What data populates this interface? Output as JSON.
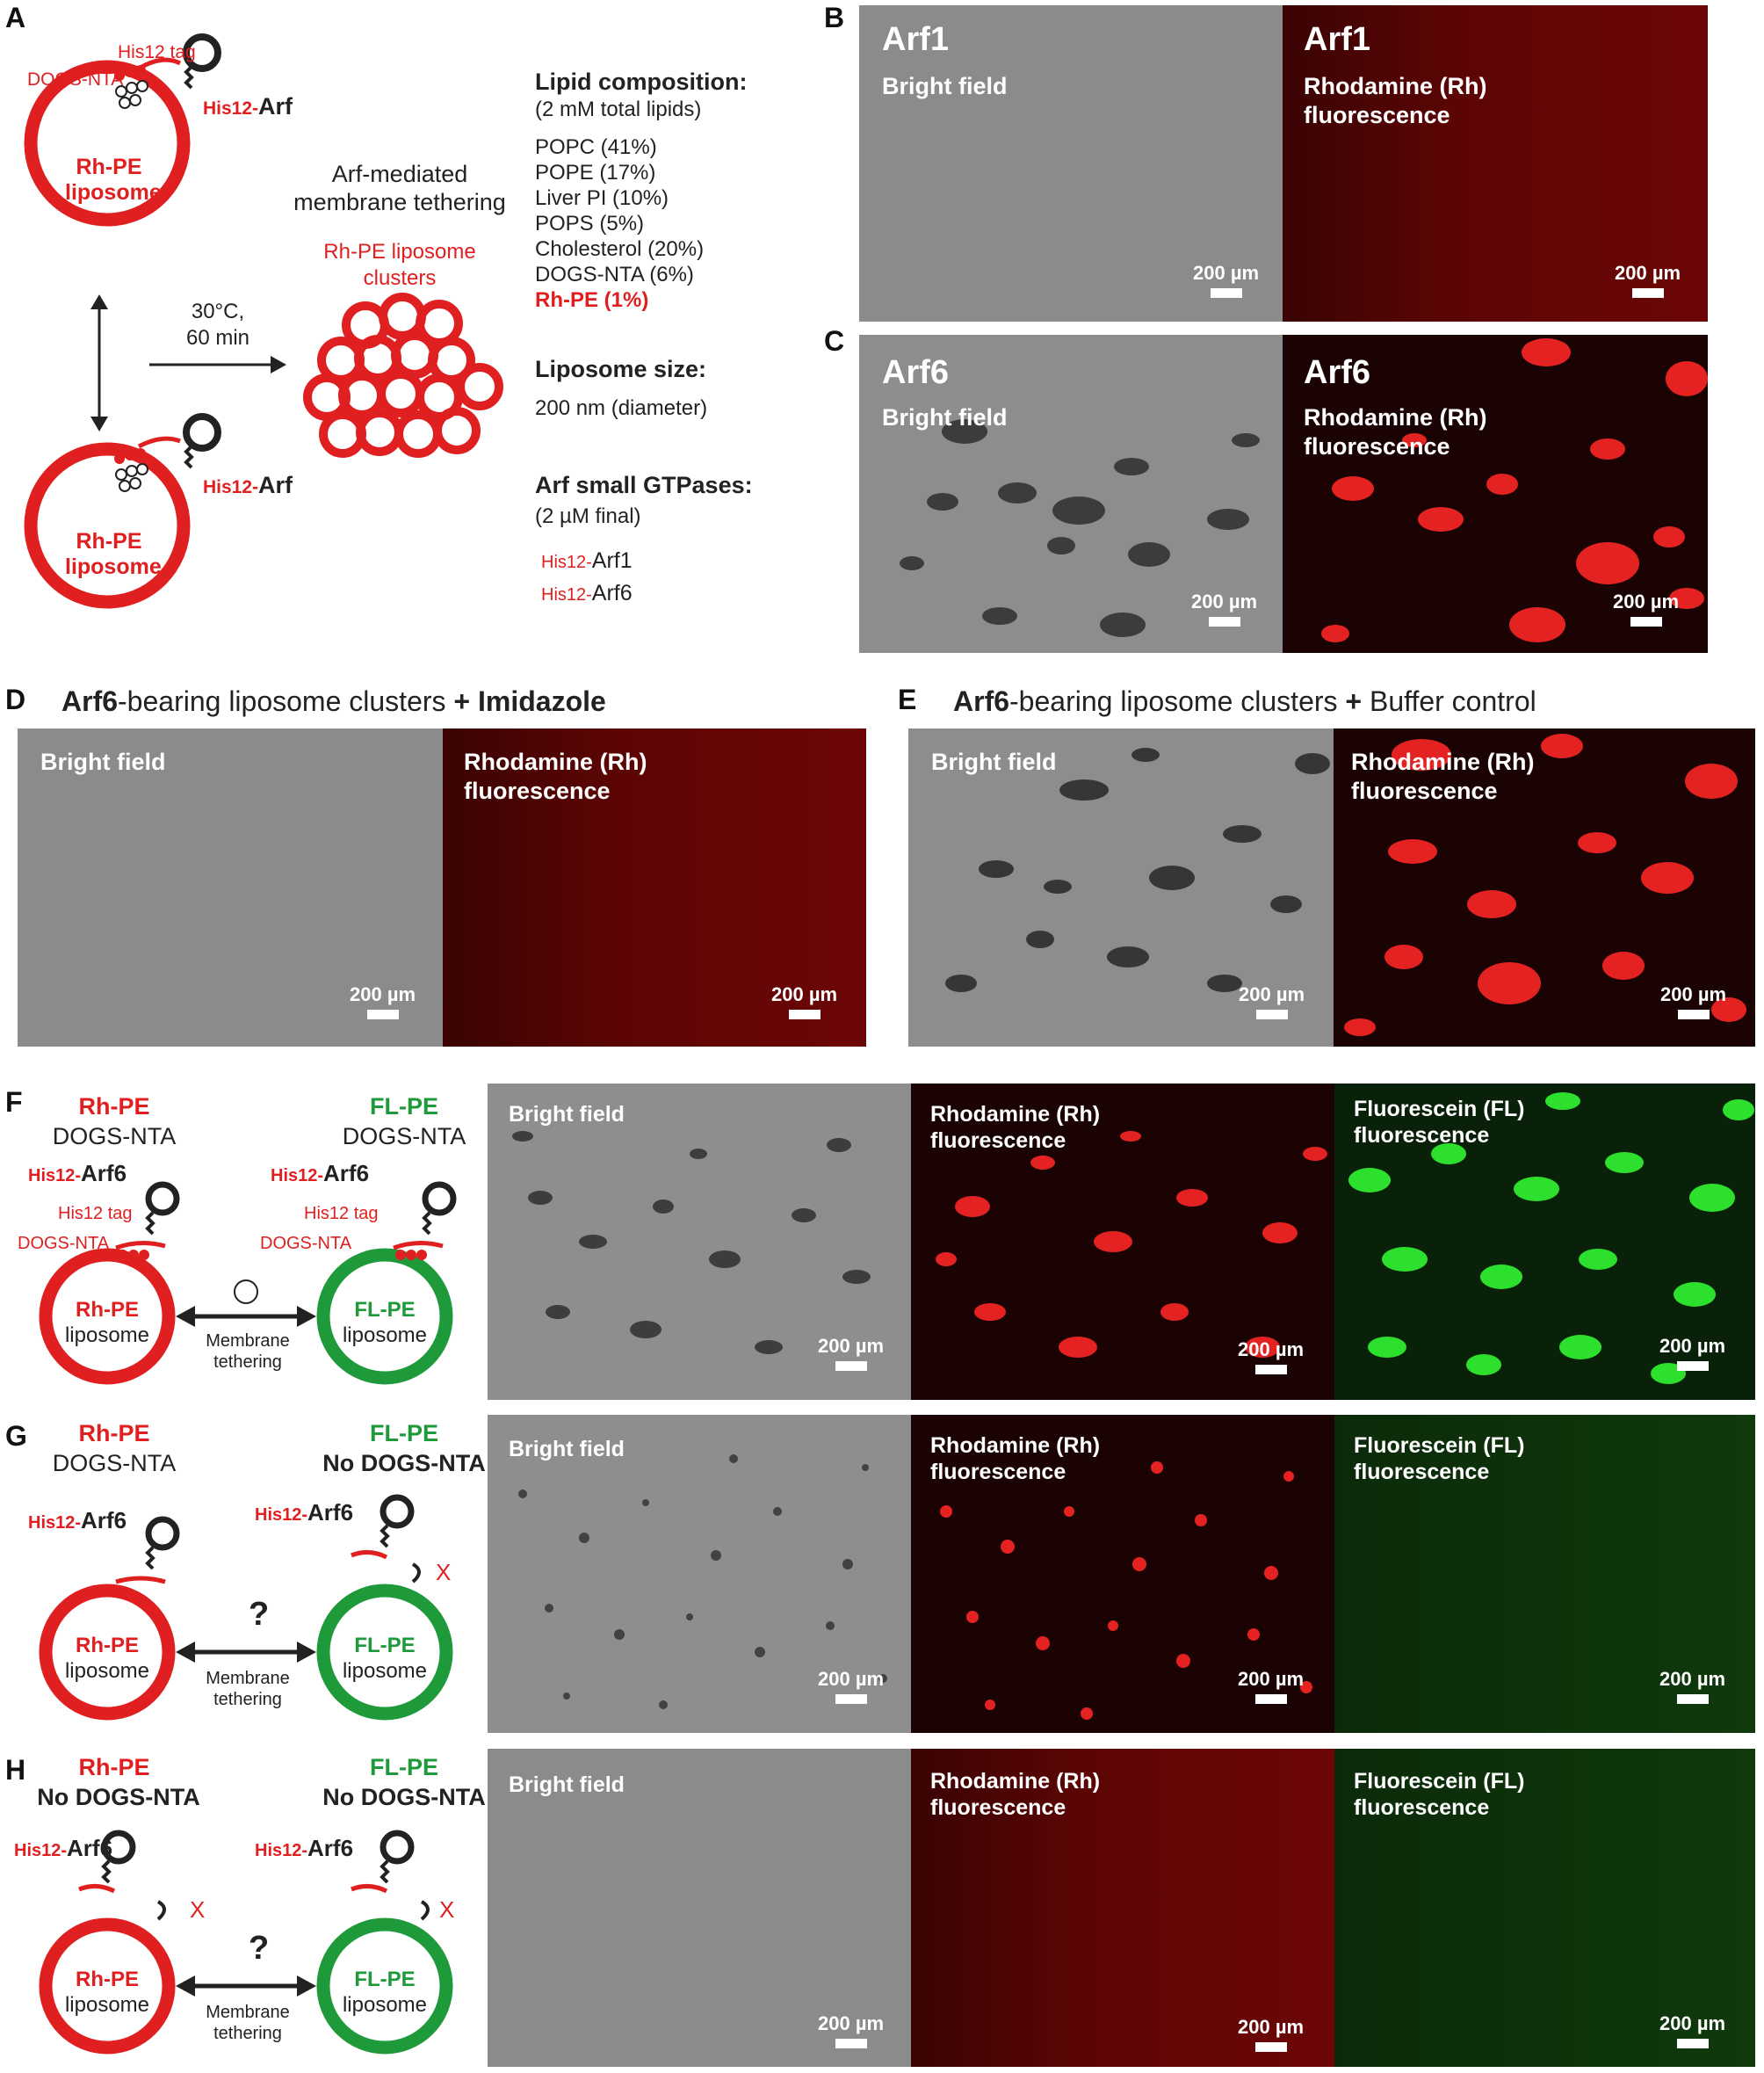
{
  "panels": {
    "A": {
      "label": "A",
      "his12_tag": "His12 tag",
      "dogs_nta": "DOGS-NTA",
      "his12_arf_prefix": "His12-",
      "his12_arf_name": "Arf",
      "liposome_l1": "Rh-PE",
      "liposome_l2": "liposome",
      "tethering_l1": "Arf-mediated",
      "tethering_l2": "membrane tethering",
      "cluster_l1": "Rh-PE liposome",
      "cluster_l2": "clusters",
      "condition_l1": "30°C,",
      "condition_l2": "60 min",
      "lipid_heading": "Lipid composition:",
      "lipid_sub": "(2 mM total lipids)",
      "lipids": [
        "POPC (41%)",
        "POPE (17%)",
        "Liver PI (10%)",
        "POPS (5%)",
        "Cholesterol (20%)",
        "DOGS-NTA (6%)"
      ],
      "lipid_highlight": "Rh-PE (1%)",
      "size_heading": "Liposome size:",
      "size_value": "200 nm (diameter)",
      "gtpase_heading": "Arf small GTPases:",
      "gtpase_sub": "(2 µM final)",
      "gtpase_prefix": "His12-",
      "gtpases": [
        "Arf1",
        "Arf6"
      ]
    },
    "B": {
      "label": "B",
      "left_title": "Arf1",
      "left_sub": "Bright field",
      "right_title": "Arf1",
      "right_sub_l1": "Rhodamine (Rh)",
      "right_sub_l2": "fluorescence",
      "scale": "200 µm"
    },
    "C": {
      "label": "C",
      "left_title": "Arf6",
      "left_sub": "Bright field",
      "right_title": "Arf6",
      "right_sub_l1": "Rhodamine (Rh)",
      "right_sub_l2": "fluorescence",
      "scale": "200 µm"
    },
    "D": {
      "label": "D",
      "header_bold": "Arf6",
      "header_mid": "-bearing liposome clusters ",
      "header_plus": "+ Imidazole",
      "left_sub": "Bright field",
      "right_sub_l1": "Rhodamine (Rh)",
      "right_sub_l2": "fluorescence",
      "scale": "200 µm"
    },
    "E": {
      "label": "E",
      "header_bold": "Arf6",
      "header_mid": "-bearing liposome clusters ",
      "header_plus": "+",
      "header_tail": " Buffer control",
      "left_sub": "Bright field",
      "right_sub_l1": "Rhodamine (Rh)",
      "right_sub_l2": "fluorescence",
      "scale": "200 µm"
    },
    "F": {
      "label": "F",
      "left_top": "Rh-PE",
      "left_top2": "DOGS-NTA",
      "right_top": "FL-PE",
      "right_top2": "DOGS-NTA",
      "arf_prefix": "His12-",
      "arf_name": "Arf6",
      "tag": "His12 tag",
      "dogs": "DOGS-NTA",
      "lipo_left": "Rh-PE",
      "lipo_right": "FL-PE",
      "lipo_word": "liposome",
      "teth_l1": "Membrane",
      "teth_l2": "tethering",
      "bf": "Bright field",
      "rh_l1": "Rhodamine (Rh)",
      "rh_l2": "fluorescence",
      "fl_l1": "Fluorescein (FL)",
      "fl_l2": "fluorescence",
      "scale": "200 µm"
    },
    "G": {
      "label": "G",
      "left_top": "Rh-PE",
      "left_top2": "DOGS-NTA",
      "right_top": "FL-PE",
      "right_top2": "No DOGS-NTA",
      "arf_prefix": "His12-",
      "arf_name": "Arf6",
      "x_mark": "X",
      "question": "?",
      "lipo_left": "Rh-PE",
      "lipo_right": "FL-PE",
      "lipo_word": "liposome",
      "teth_l1": "Membrane",
      "teth_l2": "tethering",
      "bf": "Bright field",
      "rh_l1": "Rhodamine (Rh)",
      "rh_l2": "fluorescence",
      "fl_l1": "Fluorescein (FL)",
      "fl_l2": "fluorescence",
      "scale": "200 µm"
    },
    "H": {
      "label": "H",
      "left_top": "Rh-PE",
      "left_top2": "No DOGS-NTA",
      "right_top": "FL-PE",
      "right_top2": "No DOGS-NTA",
      "arf_prefix": "His12-",
      "arf_name": "Arf6",
      "x_mark": "X",
      "question": "?",
      "lipo_left": "Rh-PE",
      "lipo_right": "FL-PE",
      "lipo_word": "liposome",
      "teth_l1": "Membrane",
      "teth_l2": "tethering",
      "bf": "Bright field",
      "rh_l1": "Rhodamine (Rh)",
      "rh_l2": "fluorescence",
      "fl_l1": "Fluorescein (FL)",
      "fl_l2": "fluorescence",
      "scale": "200 µm"
    }
  },
  "colors": {
    "rhodamine": "#e52222",
    "fluorescein": "#22cc22",
    "bright_field": "#8b8b8b",
    "liposome_red": "#e02020",
    "liposome_green": "#1f9a3a"
  }
}
